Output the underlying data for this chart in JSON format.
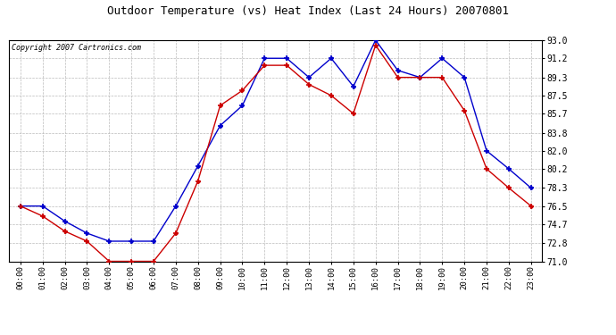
{
  "title": "Outdoor Temperature (vs) Heat Index (Last 24 Hours) 20070801",
  "copyright": "Copyright 2007 Cartronics.com",
  "hours": [
    "00:00",
    "01:00",
    "02:00",
    "03:00",
    "04:00",
    "05:00",
    "06:00",
    "07:00",
    "08:00",
    "09:00",
    "10:00",
    "11:00",
    "12:00",
    "13:00",
    "14:00",
    "15:00",
    "16:00",
    "17:00",
    "18:00",
    "19:00",
    "20:00",
    "21:00",
    "22:00",
    "23:00"
  ],
  "temp_blue": [
    76.5,
    76.5,
    75.0,
    73.8,
    73.0,
    73.0,
    73.0,
    76.5,
    80.5,
    84.5,
    86.5,
    91.2,
    91.2,
    89.3,
    91.2,
    88.4,
    93.0,
    90.0,
    89.3,
    91.2,
    89.3,
    82.0,
    80.2,
    78.3
  ],
  "temp_red": [
    76.5,
    75.5,
    74.0,
    73.0,
    71.0,
    71.0,
    71.0,
    73.8,
    79.0,
    86.5,
    88.0,
    90.5,
    90.5,
    88.6,
    87.5,
    85.7,
    92.5,
    89.3,
    89.3,
    89.3,
    86.0,
    80.2,
    78.3,
    76.5
  ],
  "ylim_min": 71.0,
  "ylim_max": 93.0,
  "yticks": [
    71.0,
    72.8,
    74.7,
    76.5,
    78.3,
    80.2,
    82.0,
    83.8,
    85.7,
    87.5,
    89.3,
    91.2,
    93.0
  ],
  "blue_color": "#0000cc",
  "red_color": "#cc0000",
  "bg_color": "#ffffff",
  "grid_color": "#bbbbbb",
  "title_fontsize": 9,
  "copyright_fontsize": 6,
  "tick_fontsize": 6.5,
  "ytick_fontsize": 7
}
